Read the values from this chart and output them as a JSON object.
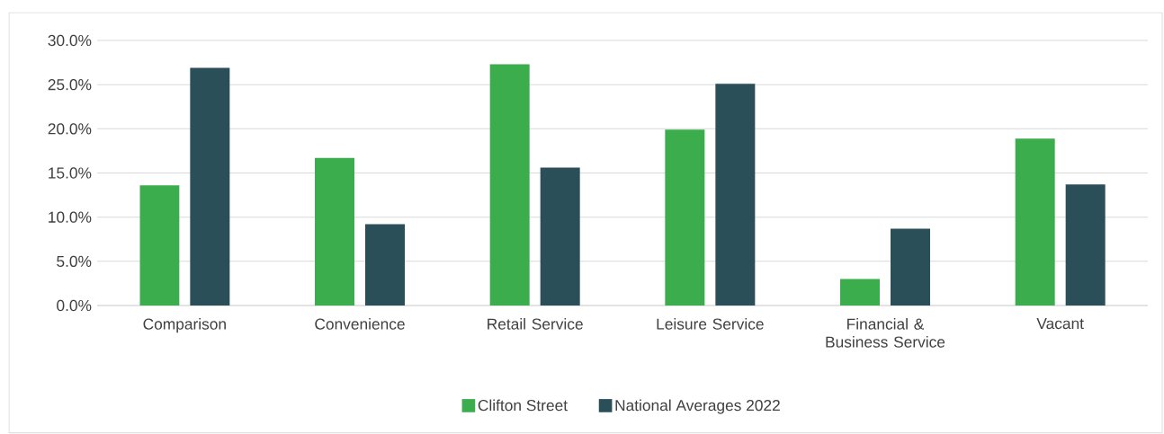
{
  "chart_data": {
    "type": "bar",
    "categories": [
      "Comparison",
      "Convenience",
      "Retail Service",
      "Leisure Service",
      "Financial & Business Service",
      "Vacant"
    ],
    "series": [
      {
        "name": "Clifton Street",
        "color": "#3cad4c",
        "values": [
          13.6,
          16.7,
          27.3,
          19.9,
          3.0,
          18.9
        ]
      },
      {
        "name": "National Averages 2022",
        "color": "#2b4f59",
        "values": [
          26.9,
          9.2,
          15.6,
          25.1,
          8.7,
          13.7
        ]
      }
    ],
    "ylim": [
      0,
      30
    ],
    "yticks": [
      {
        "value": 0,
        "label": "0.0%"
      },
      {
        "value": 5,
        "label": "5.0%"
      },
      {
        "value": 10,
        "label": "10.0%"
      },
      {
        "value": 15,
        "label": "15.0%"
      },
      {
        "value": 20,
        "label": "20.0%"
      },
      {
        "value": 25,
        "label": "25.0%"
      },
      {
        "value": 30,
        "label": "30.0%"
      }
    ],
    "grid": "y",
    "legend": "bottom"
  }
}
